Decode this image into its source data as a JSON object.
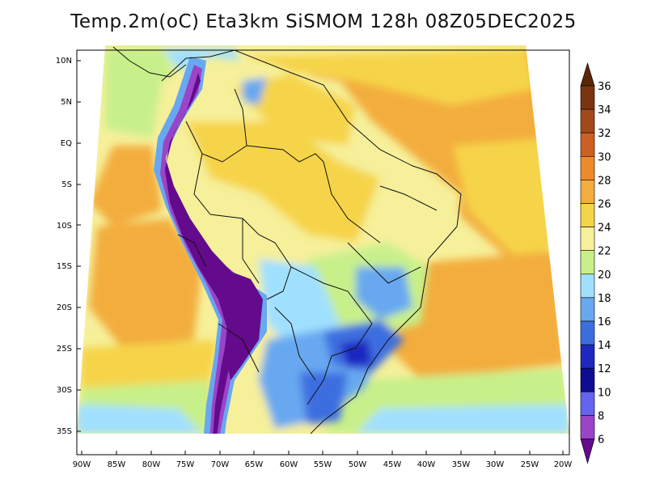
{
  "title": "Temp.2m(oC) Eta3km SiSMOM 128h 08Z05DEC2025",
  "map": {
    "lat_labels": [
      "10N",
      "5N",
      "EQ",
      "5S",
      "10S",
      "15S",
      "20S",
      "25S",
      "30S",
      "35S"
    ],
    "lon_labels": [
      "90W",
      "85W",
      "80W",
      "75W",
      "70W",
      "65W",
      "60W",
      "55W",
      "50W",
      "45W",
      "40W",
      "35W",
      "30W",
      "25W",
      "20W"
    ]
  },
  "colorbar": {
    "labels": [
      "36",
      "34",
      "32",
      "30",
      "28",
      "26",
      "24",
      "22",
      "20",
      "18",
      "16",
      "14",
      "12",
      "10",
      "8",
      "6"
    ],
    "colors": [
      "#5a2608",
      "#7a3410",
      "#a2481a",
      "#cc5f22",
      "#ee8a2c",
      "#f3ad3c",
      "#f6d44a",
      "#f6f09a",
      "#c8f08a",
      "#a0e0ff",
      "#68a8f0",
      "#3c6ee0",
      "#1e28c0",
      "#0e0c90",
      "#6464f0",
      "#9a44c8",
      "#640a8c"
    ],
    "top_color": "#5a2608",
    "bottom_color": "#640a8c"
  }
}
